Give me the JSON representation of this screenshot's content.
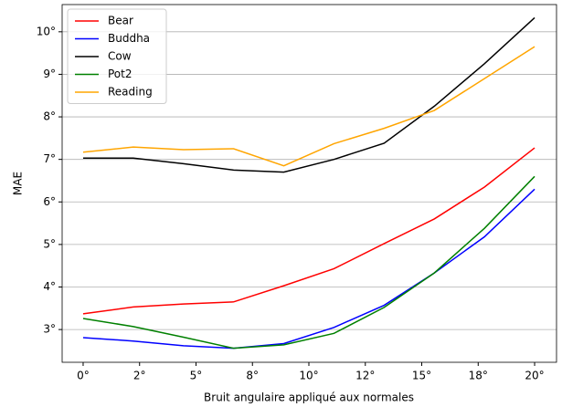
{
  "chart_data": {
    "type": "line",
    "x_label": "Bruit angulaire appliqué aux normales",
    "y_label": "MAE",
    "x": [
      0,
      2.222,
      4.444,
      6.667,
      8.889,
      11.111,
      13.333,
      15.556,
      17.778,
      20
    ],
    "series": [
      {
        "name": "Bear",
        "color": "#ff0000",
        "values": [
          3.37,
          3.53,
          3.6,
          3.65,
          4.03,
          4.43,
          5.02,
          5.6,
          6.35,
          7.27
        ]
      },
      {
        "name": "Buddha",
        "color": "#0000ff",
        "values": [
          2.81,
          2.73,
          2.62,
          2.56,
          2.67,
          3.05,
          3.57,
          4.33,
          5.18,
          6.3
        ]
      },
      {
        "name": "Cow",
        "color": "#000000",
        "values": [
          7.03,
          7.03,
          6.9,
          6.75,
          6.7,
          7.0,
          7.38,
          8.25,
          9.25,
          10.33
        ]
      },
      {
        "name": "Pot2",
        "color": "#008000",
        "values": [
          3.26,
          3.07,
          2.82,
          2.56,
          2.64,
          2.91,
          3.52,
          4.33,
          5.38,
          6.6
        ]
      },
      {
        "name": "Reading",
        "color": "#ffa500",
        "values": [
          7.17,
          7.29,
          7.23,
          7.25,
          6.85,
          7.37,
          7.73,
          8.15,
          8.9,
          9.65
        ]
      }
    ],
    "xlim": [
      -0.93,
      20.97
    ],
    "ylim": [
      2.23,
      10.64
    ],
    "xticks": [
      {
        "value": 0,
        "label": "0°"
      },
      {
        "value": 2.5,
        "label": "2°"
      },
      {
        "value": 5,
        "label": "5°"
      },
      {
        "value": 7.5,
        "label": "8°"
      },
      {
        "value": 10,
        "label": "10°"
      },
      {
        "value": 12.5,
        "label": "12°"
      },
      {
        "value": 15,
        "label": "15°"
      },
      {
        "value": 17.5,
        "label": "18°"
      },
      {
        "value": 20,
        "label": "20°"
      }
    ],
    "yticks": [
      {
        "value": 3,
        "label": "3°"
      },
      {
        "value": 4,
        "label": "4°"
      },
      {
        "value": 5,
        "label": "5°"
      },
      {
        "value": 6,
        "label": "6°"
      },
      {
        "value": 7,
        "label": "7°"
      },
      {
        "value": 8,
        "label": "8°"
      },
      {
        "value": 9,
        "label": "9°"
      },
      {
        "value": 10,
        "label": "10°"
      }
    ],
    "grid": "y",
    "legend": "upper-left"
  }
}
